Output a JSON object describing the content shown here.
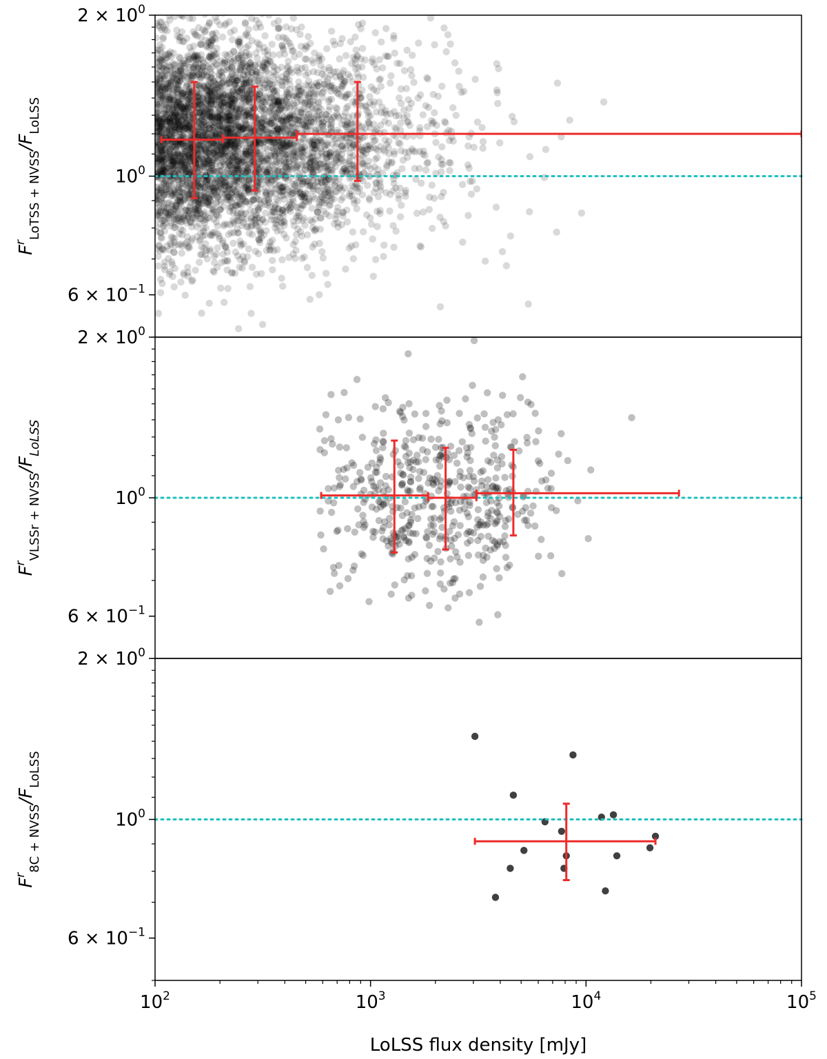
{
  "chart_data": {
    "shared_x_axis": {
      "label": "LoLSS flux density [mJy]",
      "scale": "log",
      "range": [
        100,
        100000
      ],
      "ticks": [
        {
          "value": 100,
          "base": "10",
          "exp": "2"
        },
        {
          "value": 1000,
          "base": "10",
          "exp": "3"
        },
        {
          "value": 10000,
          "base": "10",
          "exp": "4"
        },
        {
          "value": 100000,
          "base": "10",
          "exp": "5"
        }
      ]
    },
    "panels": [
      {
        "type": "scatter",
        "ylabel_main": "F",
        "ylabel_sup": "r",
        "ylabel_sub": "LoTSS + NVSS",
        "ylabel_den": "/F",
        "ylabel_den_sub": "LoLSS",
        "ylabel_italic_sub": false,
        "yscale": "log",
        "ylim": [
          0.5,
          2.0
        ],
        "yticks": [
          {
            "value": 2.0,
            "label": "2 × 10",
            "exp": "0"
          },
          {
            "value": 1.0,
            "label": "10",
            "exp": "0"
          },
          {
            "value": 0.6,
            "label": "6 × 10",
            "exp": "−1"
          }
        ],
        "reference_line": 1.0,
        "point_color": "#000000",
        "point_alpha": 0.15,
        "scatter_summary": {
          "n_points": 4500,
          "x_range": [
            100,
            27000
          ],
          "y_median": 1.17,
          "y_scatter_dex": 0.1
        },
        "binned": [
          {
            "x": 152,
            "x_lo": 107,
            "x_hi": 207,
            "y": 1.17,
            "y_lo": 0.91,
            "y_hi": 1.5
          },
          {
            "x": 290,
            "x_lo": 207,
            "x_hi": 455,
            "y": 1.18,
            "y_lo": 0.94,
            "y_hi": 1.47
          },
          {
            "x": 870,
            "x_lo": 455,
            "x_hi": 100000,
            "y": 1.2,
            "y_lo": 0.98,
            "y_hi": 1.5
          }
        ]
      },
      {
        "type": "scatter",
        "ylabel_main": "F",
        "ylabel_sup": "r",
        "ylabel_sub": "VLSSr + NVSS",
        "ylabel_den": "/F",
        "ylabel_den_sub": "LoLSS",
        "ylabel_italic_sub": true,
        "yscale": "log",
        "ylim": [
          0.5,
          2.0
        ],
        "yticks": [
          {
            "value": 2.0,
            "label": "2 × 10",
            "exp": "0"
          },
          {
            "value": 1.0,
            "label": "10",
            "exp": "0"
          },
          {
            "value": 0.6,
            "label": "6 × 10",
            "exp": "−1"
          }
        ],
        "reference_line": 1.0,
        "point_color": "#000000",
        "point_alpha": 0.25,
        "scatter_summary": {
          "n_points": 520,
          "x_range": [
            580,
            27000
          ],
          "y_median": 1.0,
          "y_scatter_dex": 0.09
        },
        "binned": [
          {
            "x": 1290,
            "x_lo": 590,
            "x_hi": 1850,
            "y": 1.01,
            "y_lo": 0.79,
            "y_hi": 1.28
          },
          {
            "x": 2230,
            "x_lo": 1850,
            "x_hi": 3100,
            "y": 1.0,
            "y_lo": 0.8,
            "y_hi": 1.24
          },
          {
            "x": 4600,
            "x_lo": 3100,
            "x_hi": 27000,
            "y": 1.02,
            "y_lo": 0.85,
            "y_hi": 1.23
          }
        ]
      },
      {
        "type": "scatter",
        "ylabel_main": "F",
        "ylabel_sup": "r",
        "ylabel_sub": "8C + NVSS",
        "ylabel_den": "/F",
        "ylabel_den_sub": "LoLSS",
        "ylabel_italic_sub": false,
        "yscale": "log",
        "ylim": [
          0.5,
          2.0
        ],
        "yticks": [
          {
            "value": 2.0,
            "label": "2 × 10",
            "exp": "0"
          },
          {
            "value": 1.0,
            "label": "10",
            "exp": "0"
          },
          {
            "value": 0.6,
            "label": "6 × 10",
            "exp": "−1"
          }
        ],
        "reference_line": 1.0,
        "point_color": "#000000",
        "point_alpha": 0.75,
        "points": [
          {
            "x": 3050,
            "y": 1.43
          },
          {
            "x": 8700,
            "y": 1.32
          },
          {
            "x": 4600,
            "y": 1.11
          },
          {
            "x": 6450,
            "y": 0.99
          },
          {
            "x": 11800,
            "y": 1.01
          },
          {
            "x": 13400,
            "y": 1.02
          },
          {
            "x": 7700,
            "y": 0.95
          },
          {
            "x": 21000,
            "y": 0.93
          },
          {
            "x": 19800,
            "y": 0.885
          },
          {
            "x": 5150,
            "y": 0.875
          },
          {
            "x": 8100,
            "y": 0.855
          },
          {
            "x": 13900,
            "y": 0.855
          },
          {
            "x": 4450,
            "y": 0.81
          },
          {
            "x": 7900,
            "y": 0.81
          },
          {
            "x": 3800,
            "y": 0.715
          },
          {
            "x": 12300,
            "y": 0.735
          }
        ],
        "binned": [
          {
            "x": 8100,
            "x_lo": 3050,
            "x_hi": 21000,
            "y": 0.91,
            "y_lo": 0.77,
            "y_hi": 1.07
          }
        ]
      }
    ]
  },
  "colors": {
    "binned": "#ee2a2a",
    "reference_line": "#1fbfbf",
    "axes": "#000000"
  }
}
